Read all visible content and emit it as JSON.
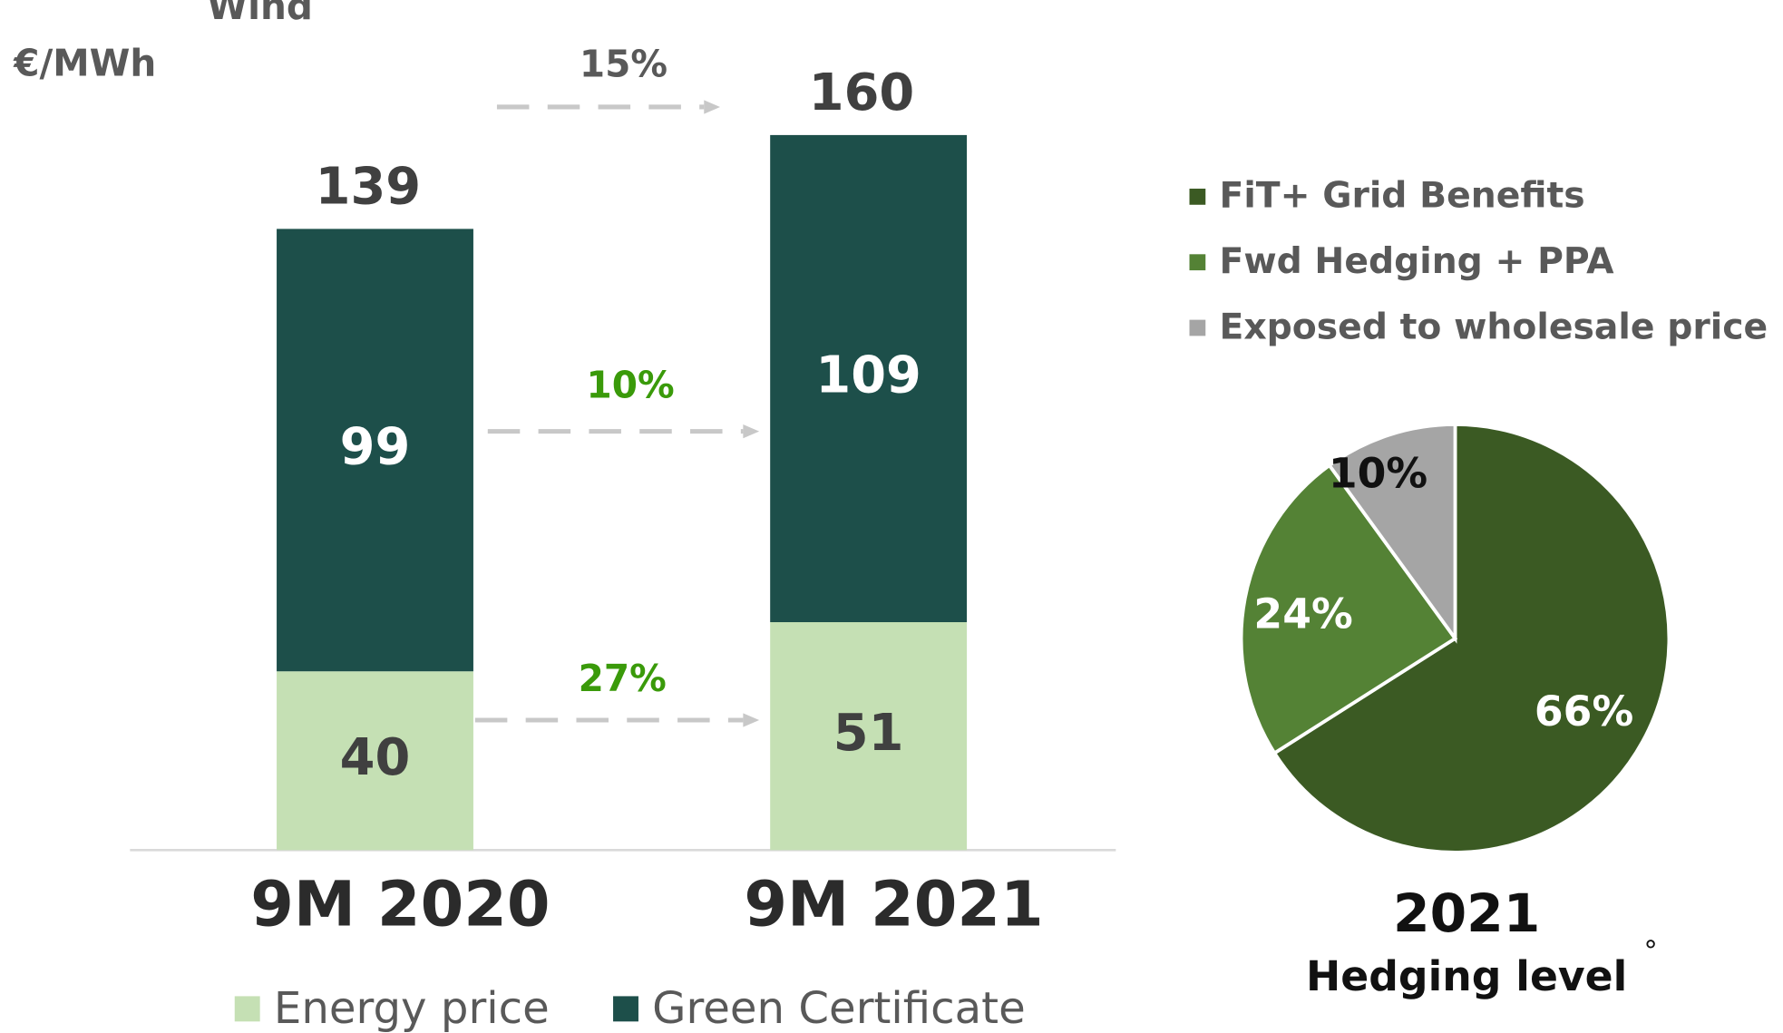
{
  "chart_data": [
    {
      "type": "stacked-bar",
      "title": "Wind",
      "unit_label": "€/MWh",
      "categories": [
        "9M 2020",
        "9M 2021"
      ],
      "series": [
        {
          "name": "Energy price",
          "color": "#c5e0b4",
          "label_color": "#404040",
          "values": [
            40,
            51
          ]
        },
        {
          "name": "Green Certificate",
          "color": "#1d4f4a",
          "label_color": "#ffffff",
          "values": [
            99,
            109
          ]
        }
      ],
      "totals": [
        139,
        160
      ],
      "growth_labels": {
        "total": "15%",
        "Green Certificate": "10%",
        "Energy price": "27%"
      }
    },
    {
      "type": "pie",
      "title": "2021",
      "subtitle": "Hedging level",
      "footnote_mark": "°",
      "categories": [
        "FiT+ Grid Benefits",
        "Fwd Hedging + PPA",
        "Exposed to wholesale price"
      ],
      "values": [
        66,
        24,
        10
      ],
      "value_labels": [
        "66%",
        "24%",
        "10%"
      ],
      "colors": [
        "#3b5a23",
        "#548235",
        "#a5a5a5"
      ],
      "label_colors": [
        "#ffffff",
        "#ffffff",
        "#111111"
      ]
    }
  ]
}
